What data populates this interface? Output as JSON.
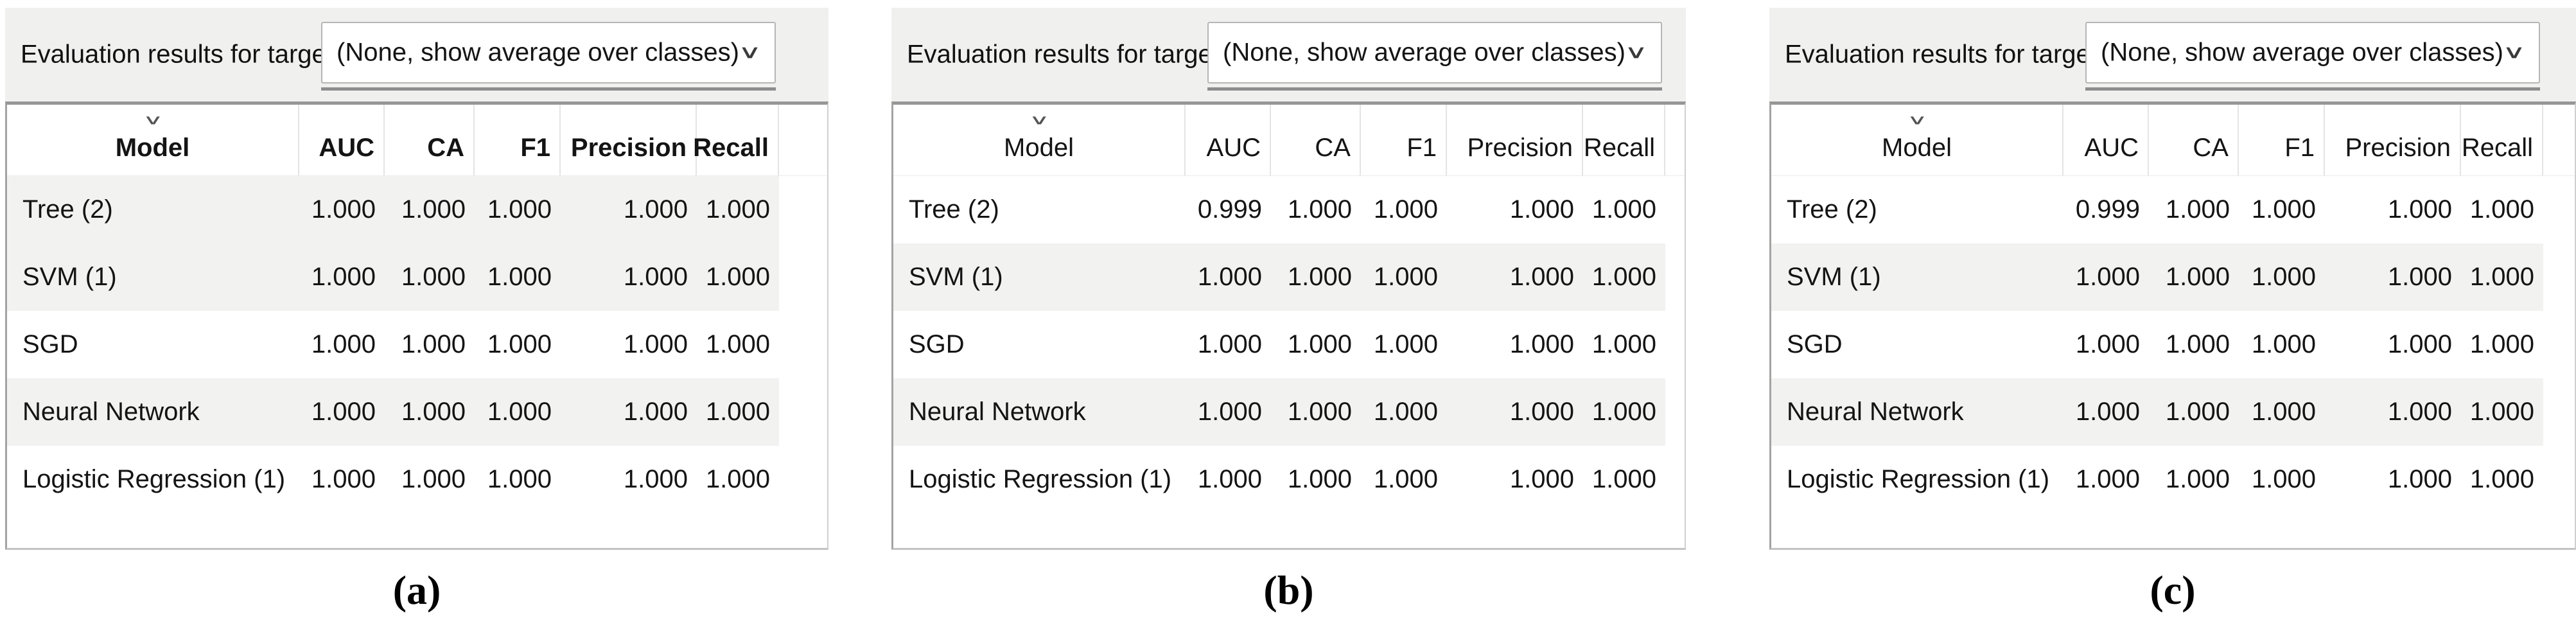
{
  "figure": {
    "panels": [
      {
        "caption": "(a)",
        "label": "Evaluation results for target",
        "combobox": {
          "value": "(None, show average over classes)"
        },
        "columns": [
          "Model",
          "AUC",
          "CA",
          "F1",
          "Precision",
          "Recall"
        ],
        "rows": [
          {
            "model": "Tree (2)",
            "values": [
              "1.000",
              "1.000",
              "1.000",
              "1.000",
              "1.000"
            ]
          },
          {
            "model": "SVM (1)",
            "values": [
              "1.000",
              "1.000",
              "1.000",
              "1.000",
              "1.000"
            ]
          },
          {
            "model": "SGD",
            "values": [
              "1.000",
              "1.000",
              "1.000",
              "1.000",
              "1.000"
            ]
          },
          {
            "model": "Neural Network",
            "values": [
              "1.000",
              "1.000",
              "1.000",
              "1.000",
              "1.000"
            ]
          },
          {
            "model": "Logistic Regression (1)",
            "values": [
              "1.000",
              "1.000",
              "1.000",
              "1.000",
              "1.000"
            ]
          }
        ]
      },
      {
        "caption": "(b)",
        "label": "Evaluation results for target",
        "combobox": {
          "value": "(None, show average over classes)"
        },
        "columns": [
          "Model",
          "AUC",
          "CA",
          "F1",
          "Precision",
          "Recall"
        ],
        "rows": [
          {
            "model": "Tree (2)",
            "values": [
              "0.999",
              "1.000",
              "1.000",
              "1.000",
              "1.000"
            ]
          },
          {
            "model": "SVM (1)",
            "values": [
              "1.000",
              "1.000",
              "1.000",
              "1.000",
              "1.000"
            ]
          },
          {
            "model": "SGD",
            "values": [
              "1.000",
              "1.000",
              "1.000",
              "1.000",
              "1.000"
            ]
          },
          {
            "model": "Neural Network",
            "values": [
              "1.000",
              "1.000",
              "1.000",
              "1.000",
              "1.000"
            ]
          },
          {
            "model": "Logistic Regression (1)",
            "values": [
              "1.000",
              "1.000",
              "1.000",
              "1.000",
              "1.000"
            ]
          }
        ]
      },
      {
        "caption": "(c)",
        "label": "Evaluation results for target",
        "combobox": {
          "value": "(None, show average over classes)"
        },
        "columns": [
          "Model",
          "AUC",
          "CA",
          "F1",
          "Precision",
          "Recall"
        ],
        "rows": [
          {
            "model": "Tree (2)",
            "values": [
              "0.999",
              "1.000",
              "1.000",
              "1.000",
              "1.000"
            ]
          },
          {
            "model": "SVM (1)",
            "values": [
              "1.000",
              "1.000",
              "1.000",
              "1.000",
              "1.000"
            ]
          },
          {
            "model": "SGD",
            "values": [
              "1.000",
              "1.000",
              "1.000",
              "1.000",
              "1.000"
            ]
          },
          {
            "model": "Neural Network",
            "values": [
              "1.000",
              "1.000",
              "1.000",
              "1.000",
              "1.000"
            ]
          },
          {
            "model": "Logistic Regression (1)",
            "values": [
              "1.000",
              "1.000",
              "1.000",
              "1.000",
              "1.000"
            ]
          }
        ]
      }
    ],
    "icons": {
      "chevron_down": "∨",
      "sort_indicator": "∨"
    },
    "colors": {
      "panel_bg": "#f0f0ef",
      "row_alt": "#f2f2f1",
      "table_border": "#a3a3a3",
      "text": "#141414"
    }
  }
}
